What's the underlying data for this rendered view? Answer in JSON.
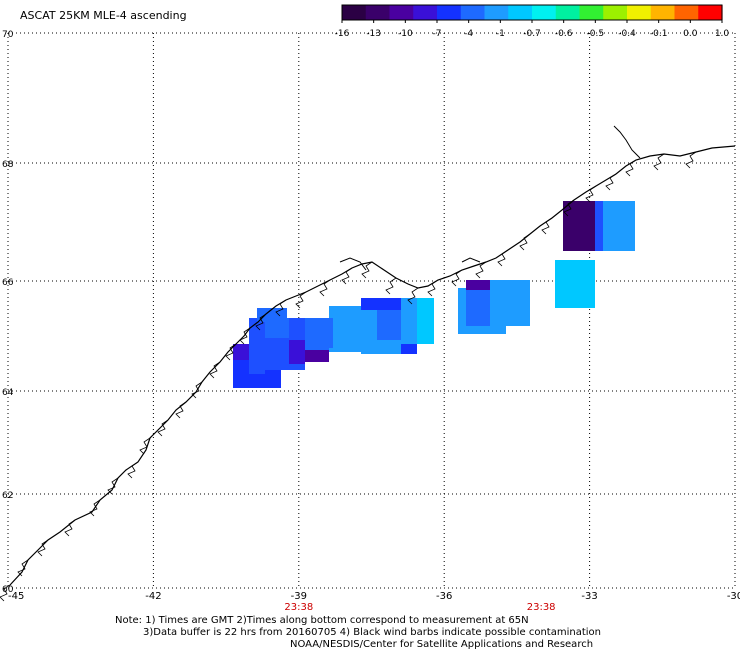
{
  "title": "ASCAT 25KM MLE-4 ascending",
  "colorbar": {
    "colors": [
      "#2b0044",
      "#3a006a",
      "#4a00a0",
      "#3a10d8",
      "#1432ff",
      "#1e6aff",
      "#1e9cff",
      "#00c8ff",
      "#00f0f0",
      "#00f0a0",
      "#32f032",
      "#9cf000",
      "#f0f000",
      "#ffb400",
      "#ff6400",
      "#ff0000"
    ],
    "labels": [
      "-16",
      "-13",
      "-10",
      "-7",
      "-4",
      "-1",
      "-0.7",
      "-0.6",
      "-0.5",
      "-0.4",
      "-0.1",
      "0.0",
      "1.0"
    ]
  },
  "axes": {
    "lon_ticks": [
      "-45",
      "-42",
      "-39",
      "-36",
      "-33",
      "-30"
    ],
    "lat_ticks": [
      "70",
      "68",
      "66",
      "64",
      "62",
      "60"
    ]
  },
  "time_labels": [
    {
      "text": "23:38",
      "lon": -39
    },
    {
      "text": "23:38",
      "lon": -34
    }
  ],
  "notes": {
    "line1": "Note: 1) Times are GMT 2)Times along bottom correspond to measurement at 65N",
    "line2": "3)Data buffer is 22 hrs from 20160705 4) Black wind barbs indicate possible contamination",
    "line3": "NOAA/NESDIS/Center for Satellite Applications and Research"
  }
}
